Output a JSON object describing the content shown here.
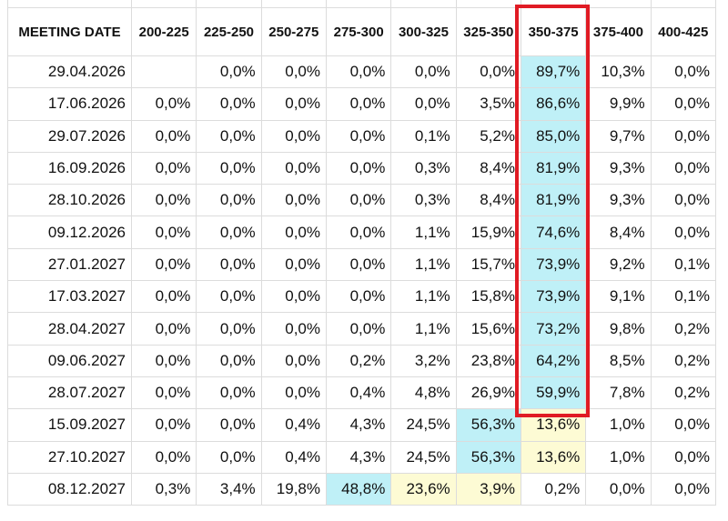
{
  "table": {
    "headers": [
      "MEETING DATE",
      "200-225",
      "225-250",
      "250-275",
      "275-300",
      "300-325",
      "325-350",
      "350-375",
      "375-400",
      "400-425"
    ],
    "rows": [
      {
        "date": "29.04.2026",
        "values": [
          "",
          "0,0%",
          "0,0%",
          "0,0%",
          "0,0%",
          "0,0%",
          "89,7%",
          "10,3%",
          "0,0%"
        ]
      },
      {
        "date": "17.06.2026",
        "values": [
          "0,0%",
          "0,0%",
          "0,0%",
          "0,0%",
          "0,0%",
          "3,5%",
          "86,6%",
          "9,9%",
          "0,0%"
        ]
      },
      {
        "date": "29.07.2026",
        "values": [
          "0,0%",
          "0,0%",
          "0,0%",
          "0,0%",
          "0,1%",
          "5,2%",
          "85,0%",
          "9,7%",
          "0,0%"
        ]
      },
      {
        "date": "16.09.2026",
        "values": [
          "0,0%",
          "0,0%",
          "0,0%",
          "0,0%",
          "0,3%",
          "8,4%",
          "81,9%",
          "9,3%",
          "0,0%"
        ]
      },
      {
        "date": "28.10.2026",
        "values": [
          "0,0%",
          "0,0%",
          "0,0%",
          "0,0%",
          "0,3%",
          "8,4%",
          "81,9%",
          "9,3%",
          "0,0%"
        ]
      },
      {
        "date": "09.12.2026",
        "values": [
          "0,0%",
          "0,0%",
          "0,0%",
          "0,0%",
          "1,1%",
          "15,9%",
          "74,6%",
          "8,4%",
          "0,0%"
        ]
      },
      {
        "date": "27.01.2027",
        "values": [
          "0,0%",
          "0,0%",
          "0,0%",
          "0,0%",
          "1,1%",
          "15,7%",
          "73,9%",
          "9,2%",
          "0,1%"
        ]
      },
      {
        "date": "17.03.2027",
        "values": [
          "0,0%",
          "0,0%",
          "0,0%",
          "0,0%",
          "1,1%",
          "15,8%",
          "73,9%",
          "9,1%",
          "0,1%"
        ]
      },
      {
        "date": "28.04.2027",
        "values": [
          "0,0%",
          "0,0%",
          "0,0%",
          "0,0%",
          "1,1%",
          "15,6%",
          "73,2%",
          "9,8%",
          "0,2%"
        ]
      },
      {
        "date": "09.06.2027",
        "values": [
          "0,0%",
          "0,0%",
          "0,0%",
          "0,2%",
          "3,2%",
          "23,8%",
          "64,2%",
          "8,5%",
          "0,2%"
        ]
      },
      {
        "date": "28.07.2027",
        "values": [
          "0,0%",
          "0,0%",
          "0,0%",
          "0,4%",
          "4,8%",
          "26,9%",
          "59,9%",
          "7,8%",
          "0,2%"
        ]
      },
      {
        "date": "15.09.2027",
        "values": [
          "0,0%",
          "0,0%",
          "0,4%",
          "4,3%",
          "24,5%",
          "56,3%",
          "13,6%",
          "1,0%",
          "0,0%"
        ]
      },
      {
        "date": "27.10.2027",
        "values": [
          "0,0%",
          "0,0%",
          "0,4%",
          "4,3%",
          "24,5%",
          "56,3%",
          "13,6%",
          "1,0%",
          "0,0%"
        ]
      },
      {
        "date": "08.12.2027",
        "values": [
          "0,3%",
          "3,4%",
          "19,8%",
          "48,8%",
          "23,6%",
          "3,9%",
          "0,2%",
          "0,0%",
          "0,0%"
        ]
      }
    ],
    "cell_highlights": {
      "cyan": [
        [
          0,
          6
        ],
        [
          1,
          6
        ],
        [
          2,
          6
        ],
        [
          3,
          6
        ],
        [
          4,
          6
        ],
        [
          5,
          6
        ],
        [
          6,
          6
        ],
        [
          7,
          6
        ],
        [
          8,
          6
        ],
        [
          9,
          6
        ],
        [
          10,
          6
        ],
        [
          11,
          5
        ],
        [
          12,
          5
        ],
        [
          13,
          3
        ]
      ],
      "yellow": [
        [
          11,
          6
        ],
        [
          12,
          6
        ],
        [
          13,
          4
        ],
        [
          13,
          5
        ]
      ]
    },
    "highlighted_column": "350-375",
    "colors": {
      "cyan": "#bff0f7",
      "yellow": "#fdfbd4",
      "highlight_box": "#e01b24",
      "grid": "#dcdcdc"
    }
  }
}
